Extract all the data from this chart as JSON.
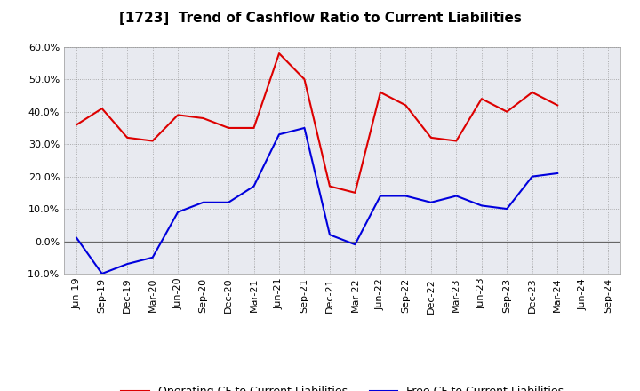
{
  "title": "[1723]  Trend of Cashflow Ratio to Current Liabilities",
  "x_labels": [
    "Jun-19",
    "Sep-19",
    "Dec-19",
    "Mar-20",
    "Jun-20",
    "Sep-20",
    "Dec-20",
    "Mar-21",
    "Jun-21",
    "Sep-21",
    "Dec-21",
    "Mar-22",
    "Jun-22",
    "Sep-22",
    "Dec-22",
    "Mar-23",
    "Jun-23",
    "Sep-23",
    "Dec-23",
    "Mar-24",
    "Jun-24",
    "Sep-24"
  ],
  "operating_cf": [
    0.36,
    0.41,
    0.32,
    0.31,
    0.39,
    0.38,
    0.35,
    0.35,
    0.58,
    0.5,
    0.17,
    0.15,
    0.46,
    0.42,
    0.32,
    0.31,
    0.44,
    0.4,
    0.46,
    0.42,
    null,
    null
  ],
  "free_cf": [
    0.01,
    -0.1,
    -0.07,
    -0.05,
    0.09,
    0.12,
    0.12,
    0.17,
    0.33,
    0.35,
    0.02,
    -0.01,
    0.14,
    0.14,
    0.12,
    0.14,
    0.11,
    0.1,
    0.2,
    0.21,
    null,
    null
  ],
  "ylim": [
    -0.1,
    0.6
  ],
  "yticks": [
    -0.1,
    0.0,
    0.1,
    0.2,
    0.3,
    0.4,
    0.5,
    0.6
  ],
  "operating_color": "#dd0000",
  "free_color": "#0000dd",
  "background_color": "#ffffff",
  "plot_bg_color": "#e8eaf0",
  "legend_operating": "Operating CF to Current Liabilities",
  "legend_free": "Free CF to Current Liabilities",
  "title_fontsize": 11,
  "axis_fontsize": 8,
  "legend_fontsize": 9,
  "grid_color": "#999999",
  "zero_line_color": "#666666"
}
